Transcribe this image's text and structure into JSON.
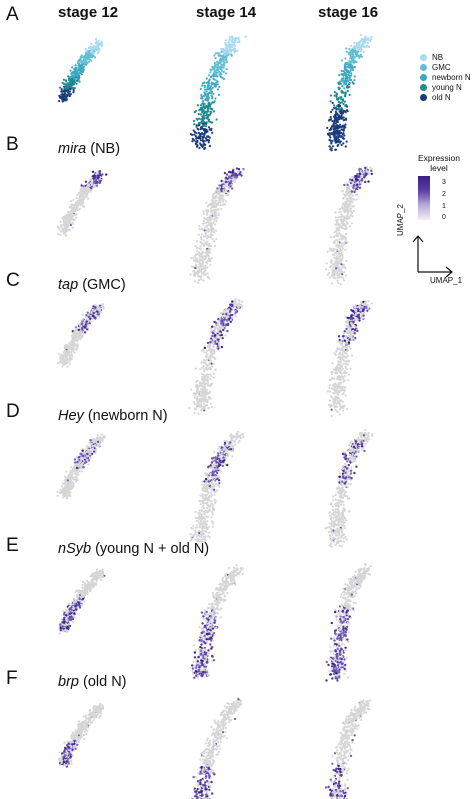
{
  "stages": [
    "stage 12",
    "stage 14",
    "stage 16"
  ],
  "panels": [
    {
      "label": "A",
      "gene": "",
      "desc": ""
    },
    {
      "label": "B",
      "gene": "mira",
      "desc": "(NB)"
    },
    {
      "label": "C",
      "gene": "tap",
      "desc": "(GMC)"
    },
    {
      "label": "D",
      "gene": "Hey",
      "desc": "(newborn N)"
    },
    {
      "label": "E",
      "gene": "nSyb",
      "desc": "(young N + old N)"
    },
    {
      "label": "F",
      "gene": "brp",
      "desc": "(old N)"
    }
  ],
  "legend": [
    {
      "name": "NB",
      "color": "#a8daf0"
    },
    {
      "name": "GMC",
      "color": "#62bfd3"
    },
    {
      "name": "newborn N",
      "color": "#3ea8c4"
    },
    {
      "name": "young N",
      "color": "#1f8a8f"
    },
    {
      "name": "old N",
      "color": "#1b3b7c"
    }
  ],
  "colorbar": {
    "title_line1": "Expression",
    "title_line2": "level",
    "ticks": [
      "3",
      "2",
      "1",
      "0"
    ],
    "low_color": "#f1eef8",
    "high_color": "#3b2184"
  },
  "axes": {
    "x": "UMAP_1",
    "y": "UMAP_2"
  },
  "background_cell_color": "#d6d6d6"
}
